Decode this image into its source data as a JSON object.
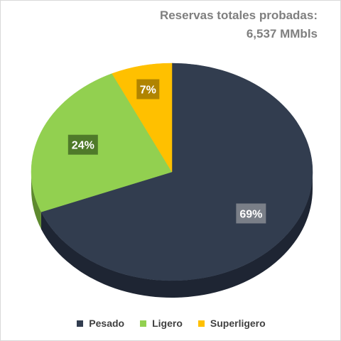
{
  "chart_data": {
    "type": "pie",
    "title_lines": [
      "Reservas totales probadas:",
      "6,537 MMbls"
    ],
    "slices": [
      {
        "name": "Pesado",
        "value": 69,
        "label": "69%",
        "color": "#323d4f",
        "shade": "#1e2533",
        "label_bg": "#7a7f88"
      },
      {
        "name": "Ligero",
        "value": 24,
        "label": "24%",
        "color": "#92d050",
        "shade": "#5e8a2f",
        "label_bg": "#4f7a2a"
      },
      {
        "name": "Superligero",
        "value": 7,
        "label": "7%",
        "color": "#ffc000",
        "shade": "#b38600",
        "label_bg": "#b08400"
      }
    ],
    "legend_position": "bottom"
  }
}
